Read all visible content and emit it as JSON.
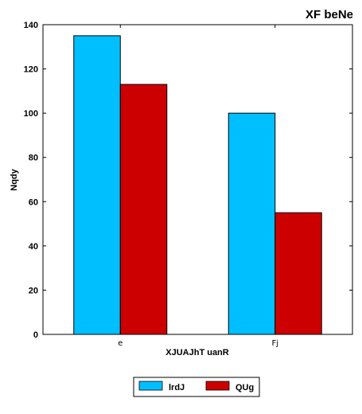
{
  "chart_data": {
    "type": "bar",
    "title": "XF beNe",
    "xlabel": "XJUAJhT uanR",
    "ylabel": "Nqdy",
    "categories": [
      "e",
      "Fj"
    ],
    "series": [
      {
        "name": "lrdJ",
        "values": [
          135,
          100
        ],
        "color": "#00bfff"
      },
      {
        "name": "QUg",
        "values": [
          113,
          55
        ],
        "color": "#cc0000"
      }
    ],
    "ylim": [
      0,
      140
    ],
    "yticks": [
      0,
      20,
      40,
      60,
      80,
      100,
      120,
      140
    ],
    "grid": false,
    "legend_position": "bottom-center"
  }
}
